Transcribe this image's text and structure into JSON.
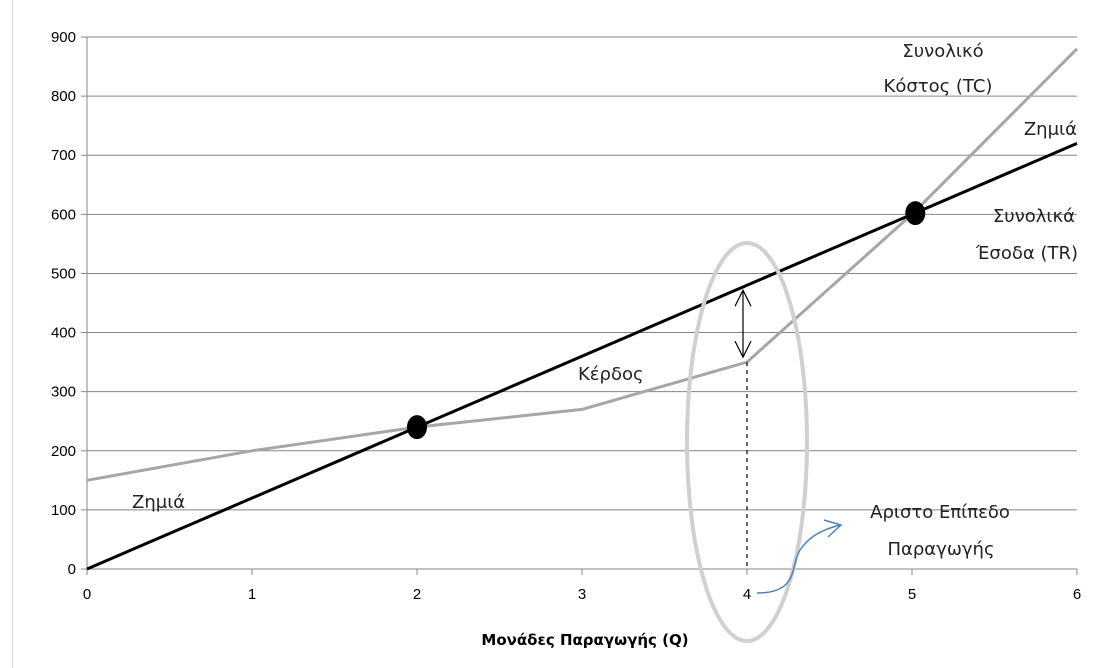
{
  "chart_data": {
    "type": "line",
    "title": "",
    "xlabel": "Μονάδες Παραγωγής (Q)",
    "ylabel": "",
    "xlim": [
      0,
      6
    ],
    "ylim": [
      0,
      900
    ],
    "x_ticks": [
      0,
      1,
      2,
      3,
      4,
      5,
      6
    ],
    "y_ticks": [
      0,
      100,
      200,
      300,
      400,
      500,
      600,
      700,
      800,
      900
    ],
    "grid": "horizontal",
    "legend": "none",
    "series": [
      {
        "key": "tc",
        "color": "#a6a6a6",
        "x": [
          0,
          1,
          2,
          3,
          4,
          5,
          6
        ],
        "values": [
          150,
          200,
          240,
          270,
          350,
          600,
          880
        ]
      },
      {
        "key": "tr",
        "color": "#000000",
        "x": [
          0,
          6
        ],
        "values": [
          0,
          720
        ]
      }
    ],
    "break_even_points": [
      {
        "x": 2,
        "y": 240
      },
      {
        "x": 5.02,
        "y": 602
      }
    ],
    "profit_gap": {
      "x": 4,
      "y_low": 350,
      "y_high": 480
    },
    "optimum_x": 4,
    "annotations": {
      "tc_label_line1": "Συνολικό",
      "tc_label_line2": "Κόστος (TC)",
      "loss_right": "Ζημιά",
      "tr_label_line1": "Συνολικά",
      "tr_label_line2": "Έσοδα (TR)",
      "profit": "Κέρδος",
      "loss_left": "Ζημιά",
      "optimum_line1": "Αριστο Επίπεδο",
      "optimum_line2": "Παραγωγής"
    }
  }
}
